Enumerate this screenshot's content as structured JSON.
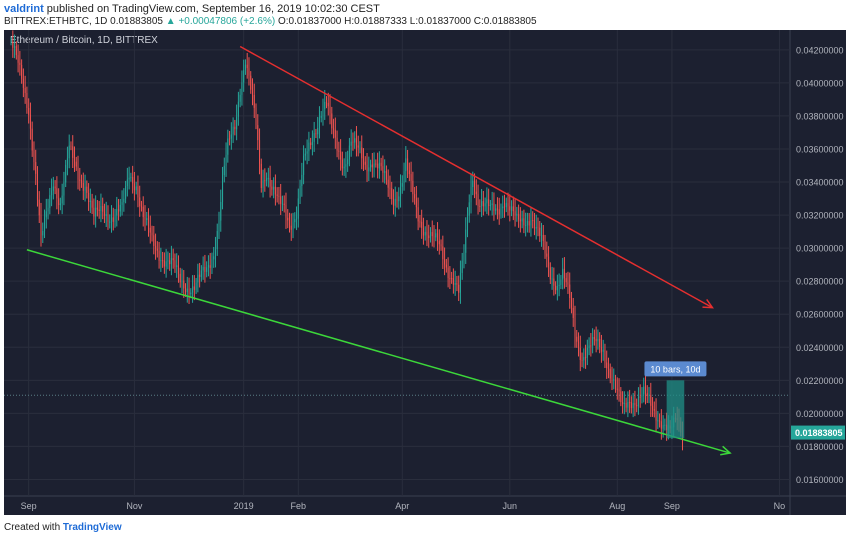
{
  "header": {
    "author": "valdrint",
    "published": "published on TradingView.com, September 16, 2019 10:02:30 CEST",
    "symbol": "BITTREX:ETHBTC, 1D",
    "ohlc_prefix": "0.01883805",
    "change": "▲ +0.00047806 (+2.6%)",
    "open": "O:0.01837000",
    "high": "H:0.01887333",
    "low": "L:0.01837000",
    "close": "C:0.01883805"
  },
  "footer": {
    "created_with": "Created with",
    "brand": "TradingView"
  },
  "colors": {
    "background": "#1c2030",
    "up": "#26a69a",
    "down": "#ef5350",
    "resistance": "#e52f2f",
    "support": "#3cd73a",
    "grid": "#2a2e3d",
    "axis_text": "#b2b5be"
  },
  "chart_data": {
    "type": "candlestick",
    "title": "Ethereum / Bitcoin, 1D, BITTREX",
    "ylim": [
      0.015,
      0.0432
    ],
    "yticks": [
      "0.04200000",
      "0.04000000",
      "0.03800000",
      "0.03600000",
      "0.03400000",
      "0.03200000",
      "0.03000000",
      "0.02800000",
      "0.02600000",
      "0.02400000",
      "0.02200000",
      "0.02000000",
      "0.01800000",
      "0.01600000"
    ],
    "xticks": [
      {
        "label": "Sep",
        "t": 10
      },
      {
        "label": "Nov",
        "t": 70
      },
      {
        "label": "2019",
        "t": 132
      },
      {
        "label": "Feb",
        "t": 163
      },
      {
        "label": "Apr",
        "t": 222
      },
      {
        "label": "Jun",
        "t": 283
      },
      {
        "label": "Aug",
        "t": 344
      },
      {
        "label": "Sep",
        "t": 375
      },
      {
        "label": "No",
        "t": 436
      }
    ],
    "t_range": [
      -4,
      442
    ],
    "last_price": "0.01883805",
    "last_price_value": 0.01883805,
    "horizontal_line": 0.0211,
    "series": [
      {
        "name": "ETHBTC",
        "points": [
          [
            0,
            0.0425
          ],
          [
            5,
            0.0405
          ],
          [
            10,
            0.0385
          ],
          [
            14,
            0.0345
          ],
          [
            17,
            0.0303
          ],
          [
            20,
            0.0318
          ],
          [
            24,
            0.0342
          ],
          [
            28,
            0.0328
          ],
          [
            33,
            0.0358
          ],
          [
            38,
            0.0345
          ],
          [
            42,
            0.034
          ],
          [
            47,
            0.0317
          ],
          [
            52,
            0.0323
          ],
          [
            58,
            0.032
          ],
          [
            63,
            0.0322
          ],
          [
            67,
            0.0345
          ],
          [
            71,
            0.034
          ],
          [
            75,
            0.0318
          ],
          [
            80,
            0.0303
          ],
          [
            84,
            0.0298
          ],
          [
            88,
            0.0293
          ],
          [
            92,
            0.0288
          ],
          [
            96,
            0.028
          ],
          [
            100,
            0.0278
          ],
          [
            104,
            0.0276
          ],
          [
            107,
            0.028
          ],
          [
            111,
            0.0287
          ],
          [
            115,
            0.0299
          ],
          [
            118,
            0.0318
          ],
          [
            120,
            0.034
          ],
          [
            123,
            0.036
          ],
          [
            127,
            0.0375
          ],
          [
            130,
            0.0399
          ],
          [
            133,
            0.0414
          ],
          [
            136,
            0.0394
          ],
          [
            139,
            0.0373
          ],
          [
            142,
            0.034
          ],
          [
            145,
            0.0348
          ],
          [
            148,
            0.0337
          ],
          [
            152,
            0.0325
          ],
          [
            155,
            0.0323
          ],
          [
            158,
            0.0316
          ],
          [
            162,
            0.0322
          ],
          [
            166,
            0.035
          ],
          [
            170,
            0.0362
          ],
          [
            173,
            0.0374
          ],
          [
            176,
            0.0385
          ],
          [
            179,
            0.0388
          ],
          [
            182,
            0.037
          ],
          [
            185,
            0.036
          ],
          [
            189,
            0.0352
          ],
          [
            193,
            0.0365
          ],
          [
            197,
            0.0357
          ],
          [
            201,
            0.035
          ],
          [
            205,
            0.0355
          ],
          [
            209,
            0.0348
          ],
          [
            213,
            0.0338
          ],
          [
            217,
            0.033
          ],
          [
            221,
            0.0338
          ],
          [
            224,
            0.035
          ],
          [
            227,
            0.0335
          ],
          [
            231,
            0.032
          ],
          [
            235,
            0.0312
          ],
          [
            239,
            0.0305
          ],
          [
            243,
            0.03
          ],
          [
            247,
            0.029
          ],
          [
            251,
            0.0282
          ],
          [
            254,
            0.0272
          ],
          [
            257,
            0.0295
          ],
          [
            260,
            0.033
          ],
          [
            262,
            0.0345
          ],
          [
            265,
            0.033
          ],
          [
            268,
            0.0325
          ],
          [
            272,
            0.0322
          ],
          [
            276,
            0.0325
          ],
          [
            280,
            0.033
          ],
          [
            284,
            0.032
          ],
          [
            287,
            0.0315
          ],
          [
            291,
            0.0318
          ],
          [
            295,
            0.032
          ],
          [
            298,
            0.031
          ],
          [
            302,
            0.03
          ],
          [
            306,
            0.0286
          ],
          [
            310,
            0.0278
          ],
          [
            313,
            0.0283
          ],
          [
            317,
            0.0268
          ],
          [
            320,
            0.025
          ],
          [
            324,
            0.0235
          ],
          [
            328,
            0.0238
          ],
          [
            332,
            0.0242
          ],
          [
            336,
            0.024
          ],
          [
            340,
            0.0225
          ],
          [
            344,
            0.021
          ],
          [
            347,
            0.0202
          ],
          [
            351,
            0.021
          ],
          [
            355,
            0.0208
          ],
          [
            359,
            0.021
          ],
          [
            363,
            0.0205
          ],
          [
            367,
            0.02
          ],
          [
            371,
            0.0192
          ],
          [
            374,
            0.0186
          ],
          [
            376,
            0.0192
          ],
          [
            378,
            0.0197
          ],
          [
            381,
            0.0189
          ]
        ]
      }
    ],
    "resistance_line": {
      "from": [
        130,
        0.0422
      ],
      "to": [
        398,
        0.0264
      ]
    },
    "support_line": {
      "from": [
        9,
        0.0299
      ],
      "to": [
        408,
        0.0176
      ]
    },
    "measure_box": {
      "t_start": 372,
      "t_end": 382,
      "low": 0.0185,
      "high": 0.022,
      "label": "10 bars, 10d"
    }
  }
}
